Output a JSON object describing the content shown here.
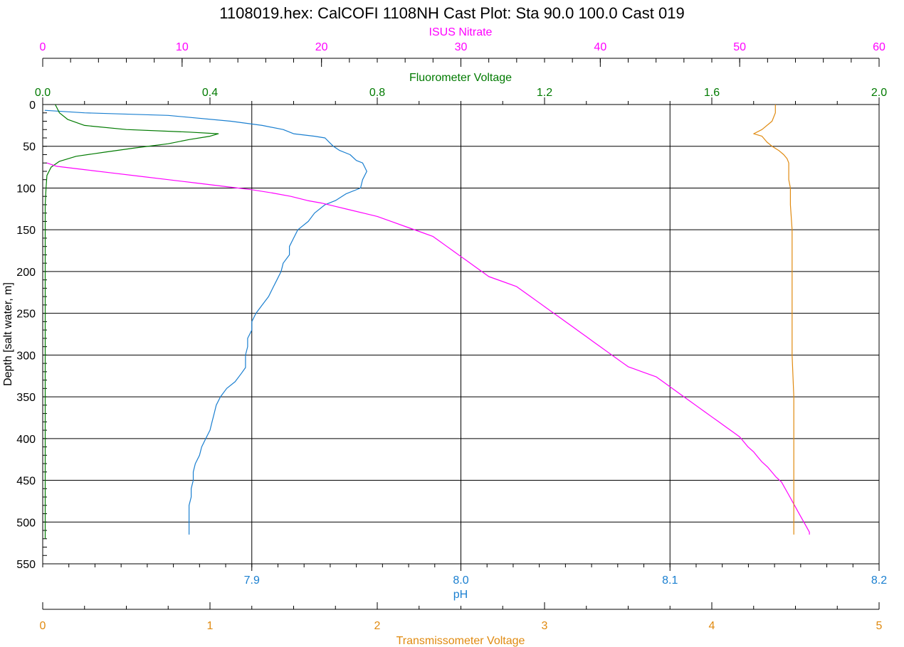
{
  "title": "1108019.hex: CalCOFI 1108NH Cast Plot: Sta 90.0 100.0 Cast 019",
  "chart_data": {
    "type": "line",
    "title": "1108019.hex: CalCOFI 1108NH Cast Plot: Sta 90.0 100.0 Cast 019",
    "grid": true,
    "y_axis": {
      "label": "Depth [salt water, m]",
      "range": [
        0,
        550
      ],
      "inverted": true,
      "ticks": [
        0,
        50,
        100,
        150,
        200,
        250,
        300,
        350,
        400,
        450,
        500,
        550
      ]
    },
    "x_axes": [
      {
        "id": "nitrate",
        "label": "ISUS Nitrate",
        "position": "top",
        "color": "#ff00ff",
        "range": [
          0,
          60
        ],
        "ticks": [
          "0",
          "10",
          "20",
          "30",
          "40",
          "50",
          "60"
        ]
      },
      {
        "id": "fluor",
        "label": "Fluorometer Voltage",
        "position": "top",
        "color": "#007a00",
        "range": [
          0,
          2.0
        ],
        "ticks": [
          "0.0",
          "0.4",
          "0.8",
          "1.2",
          "1.6",
          "2.0"
        ]
      },
      {
        "id": "ph",
        "label": "pH",
        "position": "bottom",
        "color": "#1a7fd0",
        "range": [
          7.8,
          8.2
        ],
        "ticks": [
          "7.9",
          "8.0",
          "8.1",
          "8.2"
        ],
        "tick_values": [
          7.9,
          8.0,
          8.1,
          8.2
        ]
      },
      {
        "id": "trans",
        "label": "Transmissometer Voltage",
        "position": "bottom",
        "color": "#e08a10",
        "range": [
          0,
          5
        ],
        "ticks": [
          "0",
          "1",
          "2",
          "3",
          "4",
          "5"
        ]
      }
    ],
    "series": [
      {
        "axis": "ph",
        "color": "#1a7fd0",
        "points": [
          [
            7.801,
            7
          ],
          [
            7.82,
            10
          ],
          [
            7.86,
            13
          ],
          [
            7.89,
            20
          ],
          [
            7.905,
            25
          ],
          [
            7.915,
            30
          ],
          [
            7.92,
            35
          ],
          [
            7.93,
            38
          ],
          [
            7.935,
            40
          ],
          [
            7.937,
            45
          ],
          [
            7.939,
            50
          ],
          [
            7.942,
            55
          ],
          [
            7.947,
            60
          ],
          [
            7.95,
            67
          ],
          [
            7.953,
            70
          ],
          [
            7.954,
            75
          ],
          [
            7.955,
            80
          ],
          [
            7.953,
            90
          ],
          [
            7.952,
            100
          ],
          [
            7.945,
            107
          ],
          [
            7.94,
            115
          ],
          [
            7.935,
            120
          ],
          [
            7.93,
            130
          ],
          [
            7.927,
            140
          ],
          [
            7.922,
            150
          ],
          [
            7.92,
            160
          ],
          [
            7.918,
            170
          ],
          [
            7.918,
            180
          ],
          [
            7.915,
            190
          ],
          [
            7.914,
            200
          ],
          [
            7.912,
            210
          ],
          [
            7.91,
            220
          ],
          [
            7.908,
            230
          ],
          [
            7.905,
            240
          ],
          [
            7.902,
            250
          ],
          [
            7.9,
            260
          ],
          [
            7.9,
            270
          ],
          [
            7.898,
            280
          ],
          [
            7.898,
            290
          ],
          [
            7.897,
            300
          ],
          [
            7.897,
            315
          ],
          [
            7.895,
            322
          ],
          [
            7.892,
            332
          ],
          [
            7.888,
            340
          ],
          [
            7.885,
            350
          ],
          [
            7.883,
            360
          ],
          [
            7.882,
            370
          ],
          [
            7.881,
            380
          ],
          [
            7.88,
            390
          ],
          [
            7.878,
            400
          ],
          [
            7.876,
            410
          ],
          [
            7.875,
            420
          ],
          [
            7.873,
            430
          ],
          [
            7.872,
            440
          ],
          [
            7.872,
            450
          ],
          [
            7.871,
            460
          ],
          [
            7.871,
            470
          ],
          [
            7.87,
            480
          ],
          [
            7.87,
            490
          ],
          [
            7.87,
            500
          ],
          [
            7.87,
            510
          ],
          [
            7.87,
            515
          ]
        ]
      },
      {
        "axis": "fluor",
        "color": "#007a00",
        "points": [
          [
            0.03,
            0
          ],
          [
            0.035,
            5
          ],
          [
            0.04,
            10
          ],
          [
            0.06,
            18
          ],
          [
            0.1,
            25
          ],
          [
            0.2,
            30
          ],
          [
            0.35,
            33
          ],
          [
            0.42,
            35
          ],
          [
            0.4,
            38
          ],
          [
            0.35,
            42
          ],
          [
            0.3,
            47
          ],
          [
            0.22,
            52
          ],
          [
            0.15,
            57
          ],
          [
            0.08,
            62
          ],
          [
            0.04,
            68
          ],
          [
            0.02,
            75
          ],
          [
            0.01,
            85
          ],
          [
            0.008,
            100
          ],
          [
            0.006,
            120
          ],
          [
            0.006,
            150
          ],
          [
            0.006,
            200
          ],
          [
            0.006,
            300
          ],
          [
            0.006,
            400
          ],
          [
            0.006,
            500
          ],
          [
            0.006,
            520
          ]
        ]
      },
      {
        "axis": "nitrate",
        "color": "#ff00ff",
        "points": [
          [
            0.3,
            70
          ],
          [
            1,
            74
          ],
          [
            3,
            78
          ],
          [
            5,
            82
          ],
          [
            7,
            86
          ],
          [
            9,
            90
          ],
          [
            11,
            94
          ],
          [
            13,
            98
          ],
          [
            15,
            102
          ],
          [
            16.5,
            106
          ],
          [
            17.8,
            110
          ],
          [
            19,
            115
          ],
          [
            20,
            118
          ],
          [
            21,
            122
          ],
          [
            22,
            126
          ],
          [
            23,
            130
          ],
          [
            24,
            134
          ],
          [
            25,
            140
          ],
          [
            26,
            146
          ],
          [
            27,
            152
          ],
          [
            28,
            158
          ],
          [
            28.5,
            164
          ],
          [
            29,
            170
          ],
          [
            29.5,
            176
          ],
          [
            30,
            182
          ],
          [
            30.5,
            188
          ],
          [
            31,
            194
          ],
          [
            31.5,
            200
          ],
          [
            32,
            206
          ],
          [
            33,
            212
          ],
          [
            34,
            218
          ],
          [
            34.5,
            224
          ],
          [
            35,
            230
          ],
          [
            35.5,
            236
          ],
          [
            36,
            242
          ],
          [
            36.5,
            248
          ],
          [
            37,
            254
          ],
          [
            37.5,
            260
          ],
          [
            38,
            266
          ],
          [
            38.5,
            272
          ],
          [
            39,
            278
          ],
          [
            39.5,
            284
          ],
          [
            40,
            290
          ],
          [
            40.5,
            296
          ],
          [
            41,
            302
          ],
          [
            41.5,
            308
          ],
          [
            42,
            314
          ],
          [
            43,
            320
          ],
          [
            44,
            326
          ],
          [
            44.5,
            332
          ],
          [
            45,
            338
          ],
          [
            45.5,
            344
          ],
          [
            46,
            350
          ],
          [
            46.5,
            356
          ],
          [
            47,
            362
          ],
          [
            47.5,
            368
          ],
          [
            48,
            374
          ],
          [
            48.5,
            380
          ],
          [
            49,
            386
          ],
          [
            49.5,
            392
          ],
          [
            50,
            398
          ],
          [
            50.3,
            404
          ],
          [
            50.6,
            410
          ],
          [
            51,
            416
          ],
          [
            51.3,
            422
          ],
          [
            51.6,
            428
          ],
          [
            52,
            434
          ],
          [
            52.3,
            440
          ],
          [
            52.6,
            446
          ],
          [
            53,
            452
          ],
          [
            53.2,
            458
          ],
          [
            53.4,
            464
          ],
          [
            53.6,
            470
          ],
          [
            53.8,
            476
          ],
          [
            54,
            482
          ],
          [
            54.2,
            488
          ],
          [
            54.4,
            494
          ],
          [
            54.6,
            500
          ],
          [
            54.8,
            506
          ],
          [
            55,
            512
          ],
          [
            55,
            515
          ]
        ]
      },
      {
        "axis": "trans",
        "color": "#e08a10",
        "points": [
          [
            4.38,
            0
          ],
          [
            4.38,
            10
          ],
          [
            4.36,
            20
          ],
          [
            4.3,
            30
          ],
          [
            4.25,
            35
          ],
          [
            4.3,
            38
          ],
          [
            4.33,
            45
          ],
          [
            4.36,
            50
          ],
          [
            4.4,
            55
          ],
          [
            4.43,
            60
          ],
          [
            4.45,
            65
          ],
          [
            4.46,
            70
          ],
          [
            4.46,
            80
          ],
          [
            4.46,
            90
          ],
          [
            4.47,
            100
          ],
          [
            4.47,
            120
          ],
          [
            4.48,
            150
          ],
          [
            4.48,
            200
          ],
          [
            4.48,
            250
          ],
          [
            4.48,
            300
          ],
          [
            4.49,
            350
          ],
          [
            4.49,
            400
          ],
          [
            4.49,
            450
          ],
          [
            4.49,
            500
          ],
          [
            4.49,
            515
          ]
        ]
      }
    ]
  }
}
